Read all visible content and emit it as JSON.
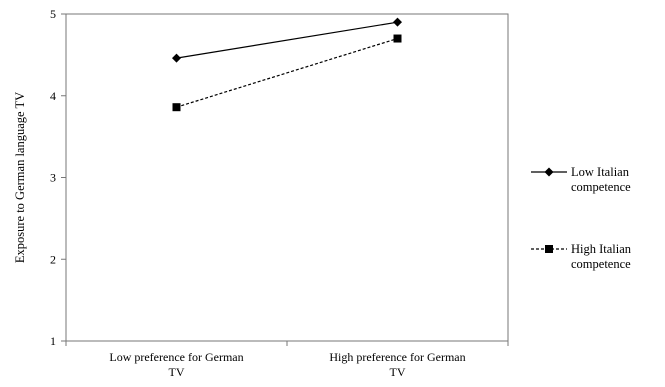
{
  "chart_data": {
    "type": "line",
    "title": "",
    "xlabel": "",
    "ylabel": "Exposure to German language  TV",
    "ylim": [
      1,
      5
    ],
    "yticks": [
      1,
      2,
      3,
      4,
      5
    ],
    "categories": [
      [
        "Low preference for German",
        "TV"
      ],
      [
        "High preference for German",
        "TV"
      ]
    ],
    "series": [
      {
        "name": [
          "Low Italian",
          "competence"
        ],
        "values": [
          4.46,
          4.9
        ],
        "marker": "diamond",
        "line": "solid",
        "color": "#000000"
      },
      {
        "name": [
          "High Italian",
          "competence"
        ],
        "values": [
          3.86,
          4.7
        ],
        "marker": "square",
        "line": "dashed",
        "color": "#000000"
      }
    ],
    "grid": false,
    "legend": "right"
  }
}
